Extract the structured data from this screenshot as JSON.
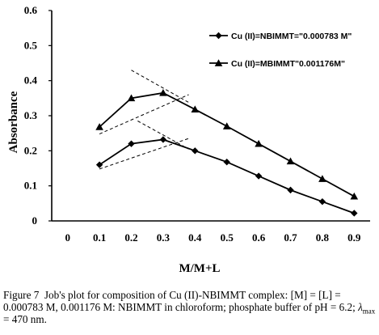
{
  "chart_data": {
    "type": "line",
    "title": "",
    "xlabel": "M/M+L",
    "ylabel": "Absorbance",
    "xlim": [
      -0.05,
      0.95
    ],
    "ylim": [
      0,
      0.6
    ],
    "x_ticks": [
      "0",
      "0.1",
      "0.2",
      "0.3",
      "0.4",
      "0.5",
      "0.6",
      "0.7",
      "0.8",
      "0.9"
    ],
    "y_ticks": [
      "0",
      "0.1",
      "0.2",
      "0.3",
      "0.4",
      "0.5",
      "0.6"
    ],
    "grid": false,
    "legend_position": "top-right",
    "series": [
      {
        "name": "Cu (II)=NBIMMT=\"0.000783 M\"",
        "marker": "diamond",
        "color": "#000000",
        "x": [
          0.1,
          0.2,
          0.3,
          0.4,
          0.5,
          0.6,
          0.7,
          0.8,
          0.9
        ],
        "y": [
          0.16,
          0.22,
          0.232,
          0.2,
          0.168,
          0.128,
          0.088,
          0.055,
          0.022
        ]
      },
      {
        "name": "Cu (II)=MBIMMT\"0.001176M\"",
        "marker": "triangle",
        "color": "#000000",
        "x": [
          0.1,
          0.2,
          0.3,
          0.4,
          0.5,
          0.6,
          0.7,
          0.8,
          0.9
        ],
        "y": [
          0.268,
          0.35,
          0.365,
          0.318,
          0.27,
          0.22,
          0.17,
          0.12,
          0.07
        ]
      }
    ],
    "extrapolation_lines": [
      {
        "series": 0,
        "from": [
          0.1,
          0.148
        ],
        "to": [
          0.38,
          0.235
        ]
      },
      {
        "series": 0,
        "from": [
          0.22,
          0.285
        ],
        "to": [
          0.38,
          0.205
        ]
      },
      {
        "series": 1,
        "from": [
          0.1,
          0.248
        ],
        "to": [
          0.38,
          0.36
        ]
      },
      {
        "series": 1,
        "from": [
          0.2,
          0.43
        ],
        "to": [
          0.38,
          0.338
        ]
      }
    ]
  },
  "caption": {
    "label": "Figure 7",
    "text": "Job's plot for composition of Cu (II)-NBIMMT complex: [M] = [L] = 0.000783 M, 0.001176 M: NBIMMT in chloroform; phosphate buffer of pH = 6.2;",
    "lambda_symbol": "λ",
    "lambda_sub": "max",
    "lambda_value": "= 470 nm."
  }
}
